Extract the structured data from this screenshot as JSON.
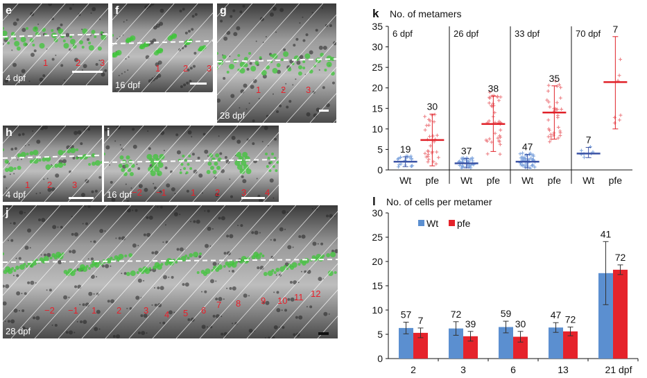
{
  "panels": [
    {
      "letter": "e",
      "time": "4 dpf",
      "segments": [
        "1",
        "2",
        "3"
      ]
    },
    {
      "letter": "f",
      "time": "16 dpf",
      "segments": [
        "1",
        "2",
        "3"
      ]
    },
    {
      "letter": "g",
      "time": "28 dpf",
      "segments": [
        "1",
        "2",
        "3"
      ]
    },
    {
      "letter": "h",
      "time": "4 dpf",
      "segments": [
        "1",
        "2",
        "3"
      ]
    },
    {
      "letter": "i",
      "time": "16 dpf",
      "segments": [
        "−2",
        "−1",
        "1",
        "2",
        "3",
        "4"
      ]
    },
    {
      "letter": "j",
      "time": "28 dpf",
      "segments": [
        "−2",
        "−1",
        "1",
        "2",
        "3",
        "4",
        "5",
        "6",
        "7",
        "8",
        "9",
        "10",
        "11",
        "12"
      ]
    }
  ],
  "chart_k": {
    "letter": "k",
    "title": "No. of metamers",
    "groups": [
      {
        "time": "6 dpf",
        "wt_n": "19",
        "pfe_n": "30",
        "wt_mean": 2,
        "pfe_mean": 7.3,
        "wt_sd": [
          0.8,
          3.2
        ],
        "pfe_sd": [
          1,
          13.6
        ]
      },
      {
        "time": "26 dpf",
        "wt_n": "37",
        "pfe_n": "38",
        "wt_mean": 1.6,
        "pfe_mean": 11.2,
        "wt_sd": [
          0.5,
          2.8
        ],
        "pfe_sd": [
          4.5,
          18
        ]
      },
      {
        "time": "33 dpf",
        "wt_n": "47",
        "pfe_n": "35",
        "wt_mean": 2,
        "pfe_mean": 14,
        "wt_sd": [
          0.5,
          3.8
        ],
        "pfe_sd": [
          7.5,
          20.5
        ]
      },
      {
        "time": "70 dpf",
        "wt_n": "7",
        "pfe_n": "7",
        "wt_mean": 4,
        "pfe_mean": 21.4,
        "wt_sd": [
          3,
          5.5
        ],
        "pfe_sd": [
          10,
          32.5
        ]
      }
    ],
    "xlabels": [
      "Wt",
      "pfe"
    ],
    "yticks": [
      "35",
      "30",
      "25",
      "20",
      "15",
      "10",
      "5",
      "0"
    ],
    "ylim": [
      0,
      35
    ],
    "colors": {
      "wt": "#3a52a4",
      "pfe": "#e02028"
    }
  },
  "chart_data": {
    "type": "bar",
    "letter": "l",
    "title": "No. of cells per metamer",
    "categories": [
      "2",
      "3",
      "6",
      "13",
      "21 dpf"
    ],
    "series": [
      {
        "name": "Wt",
        "values": [
          6.3,
          6.2,
          6.5,
          6.4,
          17.6
        ],
        "err": [
          1.2,
          1.4,
          1.2,
          1.0,
          6.5
        ],
        "n": [
          "57",
          "72",
          "59",
          "47",
          "41"
        ],
        "color": "#5b8fd0"
      },
      {
        "name": "pfe",
        "values": [
          5.3,
          4.6,
          4.5,
          5.6,
          18.3
        ],
        "err": [
          1.0,
          1.0,
          1.1,
          0.9,
          1.0
        ],
        "n": [
          "7",
          "39",
          "30",
          "72",
          "72"
        ],
        "color": "#e5232b"
      }
    ],
    "yticks": [
      "30",
      "25",
      "20",
      "15",
      "10",
      "5",
      "0"
    ],
    "ylim": [
      0,
      30
    ]
  }
}
